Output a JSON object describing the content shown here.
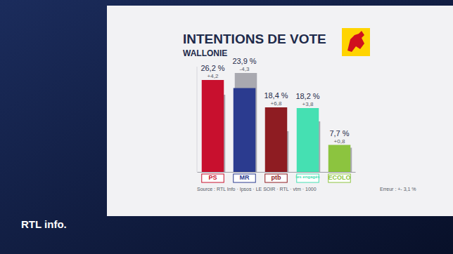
{
  "chart_data": {
    "type": "bar",
    "title": "INTENTIONS DE VOTE",
    "subtitle": "WALLONIE",
    "categories": [
      "PS",
      "MR",
      "ptb",
      "les engagés",
      "ECOLO"
    ],
    "values": [
      26.2,
      23.9,
      18.4,
      18.2,
      7.7
    ],
    "value_labels": [
      "26,2 %",
      "23,9 %",
      "18,4 %",
      "18,2 %",
      "7,7 %"
    ],
    "changes": [
      4.2,
      -4.3,
      6.8,
      3.8,
      0.8
    ],
    "change_labels": [
      "+4,2",
      "-4,3",
      "+6,8",
      "+3,8",
      "+0,8"
    ],
    "colors": [
      "#c8102e",
      "#2b3b8f",
      "#8e1c22",
      "#45e0b2",
      "#8cc43f"
    ],
    "ylim": [
      0,
      30
    ],
    "tick_labels": false,
    "data_labels": true,
    "source": "Source : RTL Info · Ipsos · LE SOIR · RTL · vtm · 1000",
    "error_note": "Erreur : +- 3,1 %",
    "brand": "RTL info."
  }
}
